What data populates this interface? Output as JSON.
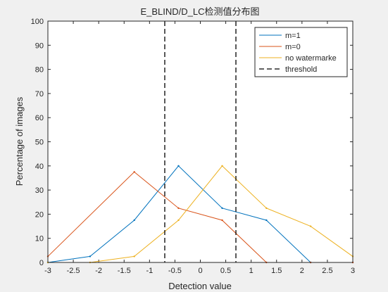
{
  "chart_data": {
    "type": "line",
    "title": "E_BLIND/D_LC检测值分布图",
    "xlabel": "Detection value",
    "ylabel": "Percentage of images",
    "xlim": [
      -3,
      3
    ],
    "ylim": [
      0,
      100
    ],
    "xticks": [
      -3,
      -2.5,
      -2,
      -1.5,
      -1,
      -0.5,
      0,
      0.5,
      1,
      1.5,
      2,
      2.5,
      3
    ],
    "xtick_labels": [
      "-3",
      "-2.5",
      "-2",
      "-1.5",
      "-1",
      "-0.5",
      "0",
      "0.5",
      "1",
      "1.5",
      "2",
      "2.5",
      "3"
    ],
    "yticks": [
      0,
      10,
      20,
      30,
      40,
      50,
      60,
      70,
      80,
      90,
      100
    ],
    "ytick_labels": [
      "0",
      "10",
      "20",
      "30",
      "40",
      "50",
      "60",
      "70",
      "80",
      "90",
      "100"
    ],
    "grid": false,
    "legend_position": "top-right",
    "series": [
      {
        "name": "m=1",
        "color": "#0072bd",
        "x": [
          -3,
          -2.17,
          -1.3,
          -0.43,
          0.43,
          1.3,
          2.17,
          3
        ],
        "y": [
          0,
          2.5,
          17.5,
          40,
          22.5,
          17.5,
          0,
          0
        ]
      },
      {
        "name": "m=0",
        "color": "#d95319",
        "x": [
          -3,
          -1.3,
          -0.43,
          0.43,
          1.3,
          2.17,
          3
        ],
        "y": [
          2.5,
          37.5,
          22.5,
          17.5,
          0,
          0,
          0
        ]
      },
      {
        "name": "no watermarke",
        "color": "#edb120",
        "x": [
          -3,
          -2.17,
          -1.3,
          -0.43,
          0.43,
          1.3,
          2.17,
          3
        ],
        "y": [
          0,
          0,
          2.5,
          17.5,
          40,
          22.5,
          15,
          2.5
        ]
      }
    ],
    "threshold": {
      "name": "threshold",
      "color": "#000000",
      "style": "dashed",
      "x": [
        -0.7,
        0.7
      ]
    }
  }
}
